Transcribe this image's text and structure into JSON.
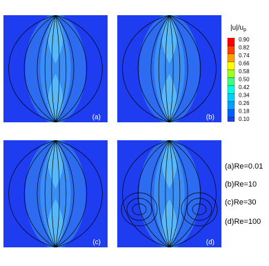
{
  "panels": [
    {
      "label": "(a)"
    },
    {
      "label": "(b)"
    },
    {
      "label": "(c)"
    },
    {
      "label": "(d)"
    }
  ],
  "colorbar": {
    "title": "|u|/u",
    "title_sub": "p",
    "ticks": [
      "0.90",
      "0.82",
      "0.74",
      "0.66",
      "0.58",
      "0.50",
      "0.42",
      "0.34",
      "0.26",
      "0.18",
      "0.10"
    ]
  },
  "legend": [
    "(a)Re=0.01",
    "(b)Re=10",
    "(c)Re=30",
    "(d)Re=100"
  ]
}
